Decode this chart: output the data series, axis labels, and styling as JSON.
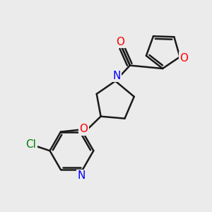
{
  "bg_color": "#ebebeb",
  "bond_color": "#1a1a1a",
  "N_color": "#0000ff",
  "O_color": "#ff0000",
  "Cl_color": "#008000",
  "line_width": 1.8,
  "font_size": 11,
  "figsize": [
    3.0,
    3.0
  ],
  "dpi": 100,
  "xlim": [
    0,
    10
  ],
  "ylim": [
    0,
    10
  ]
}
